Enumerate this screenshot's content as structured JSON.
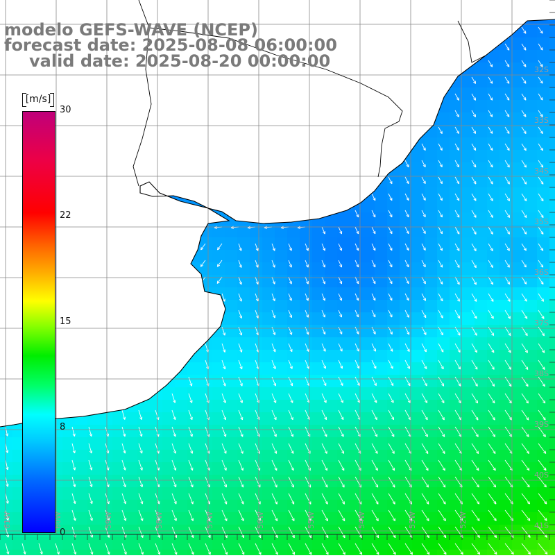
{
  "title": {
    "line1": "modelo GEFS-WAVE (NCEP)",
    "line2": "forecast date: 2025-08-08 06:00:00",
    "line3": "valid date: 2025-08-20 00:00:00"
  },
  "colorbar": {
    "unit": "[m/s]",
    "ticks": [
      "30",
      "22",
      "15",
      "8",
      "0"
    ],
    "tick_values": [
      30,
      22,
      15,
      8,
      0
    ],
    "range": [
      0,
      30
    ],
    "colors": [
      "#0000ff",
      "#00ccff",
      "#00ffff",
      "#00ee00",
      "#ffff00",
      "#ff6600",
      "#ff0000",
      "#c0007a"
    ]
  },
  "map": {
    "projection": "lat-lon grid",
    "lon_labels": [
      "61W",
      "60W",
      "59W",
      "58W",
      "57W",
      "56W",
      "55W",
      "54W",
      "53W",
      "52W"
    ],
    "lat_labels": [
      "32S",
      "33S",
      "34S",
      "35S",
      "36S",
      "37S",
      "38S",
      "39S",
      "40S",
      "41S"
    ],
    "grid_color": "#888888",
    "coast_color": "#000000",
    "arrow_color": "#ffffff",
    "land_color": "#ffffff",
    "wind_field": "mostly north-westerly/northerly flow, stronger (green) toward the south-east corner, weaker (blue) near the Rio de la Plata",
    "grid_lines": true
  }
}
